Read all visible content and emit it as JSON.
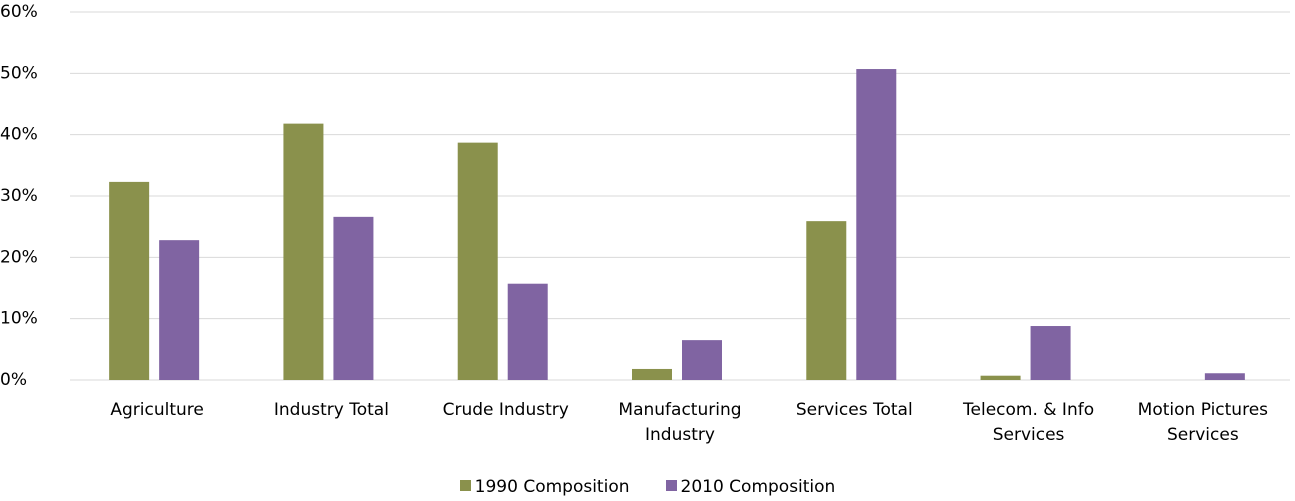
{
  "chart_data": {
    "type": "bar",
    "categories": [
      "Agriculture",
      "Industry Total",
      "Crude Industry",
      "Manufacturing Industry",
      "Services Total",
      "Telecom. & Info Services",
      "Motion Pictures Services"
    ],
    "series": [
      {
        "name": "1990 Composition",
        "color": "#8a914c",
        "values": [
          32.3,
          41.8,
          38.7,
          1.8,
          25.9,
          0.7,
          0
        ]
      },
      {
        "name": "2010 Composition",
        "color": "#8064a2",
        "values": [
          22.8,
          26.6,
          15.7,
          6.5,
          50.7,
          8.8,
          1.1
        ]
      }
    ],
    "ylim": [
      0,
      60
    ],
    "yticks": [
      {
        "value": 0,
        "label": "0%"
      },
      {
        "value": 10,
        "label": "10%"
      },
      {
        "value": 20,
        "label": "20%"
      },
      {
        "value": 30,
        "label": "30%"
      },
      {
        "value": 40,
        "label": "40%"
      },
      {
        "value": 50,
        "label": "50%"
      },
      {
        "value": 60,
        "label": "60%"
      }
    ],
    "grid": true,
    "legend": "bottom"
  }
}
